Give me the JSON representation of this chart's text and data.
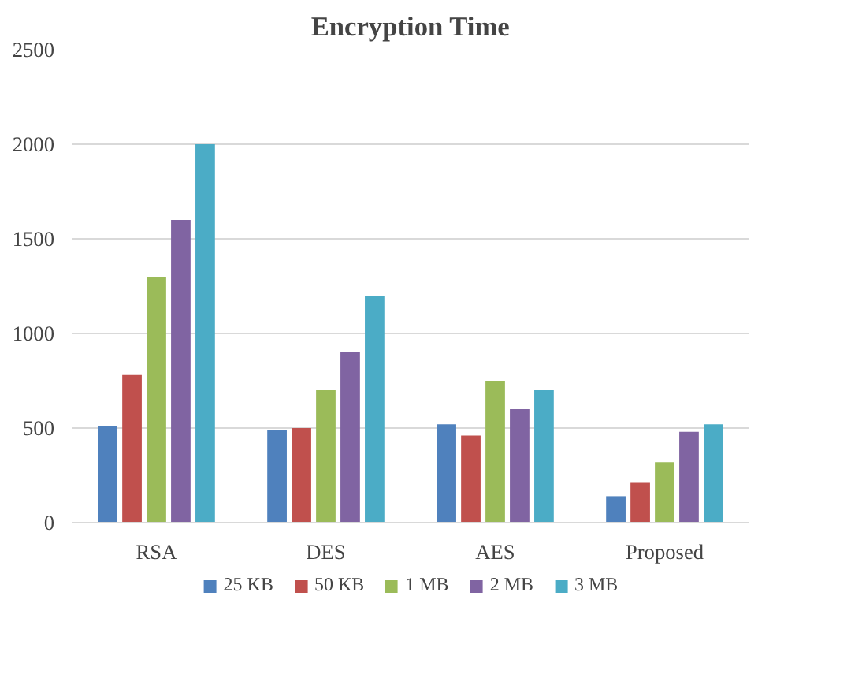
{
  "chart_data": {
    "type": "bar",
    "title": "Encryption Time",
    "categories": [
      "RSA",
      "DES",
      "AES",
      "Proposed"
    ],
    "series": [
      {
        "name": "25 KB",
        "color": "#4f81bd",
        "values": [
          510,
          490,
          520,
          140
        ]
      },
      {
        "name": "50 KB",
        "color": "#c0504d",
        "values": [
          780,
          500,
          460,
          210
        ]
      },
      {
        "name": "1 MB",
        "color": "#9bbb59",
        "values": [
          1300,
          700,
          750,
          320
        ]
      },
      {
        "name": "2 MB",
        "color": "#8064a2",
        "values": [
          1600,
          900,
          600,
          480
        ]
      },
      {
        "name": "3 MB",
        "color": "#4bacc6",
        "values": [
          2000,
          1200,
          700,
          520
        ]
      }
    ],
    "ylim": [
      0,
      2500
    ],
    "yticks": [
      0,
      500,
      1000,
      1500,
      2000,
      2500
    ],
    "grid": "y",
    "legend": "bottom"
  }
}
